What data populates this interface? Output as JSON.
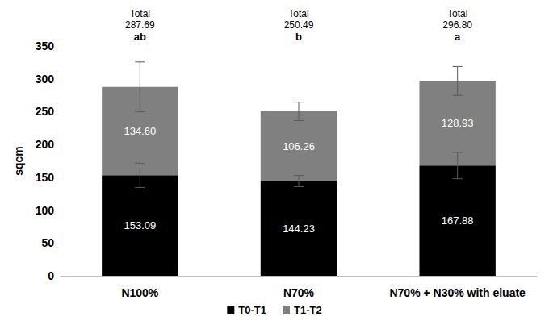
{
  "chart_data": {
    "type": "bar",
    "stacked": true,
    "y_label": "sqcm",
    "categories": [
      "N100%",
      "N70%",
      "N70% + N30% with eluate"
    ],
    "series": [
      {
        "name": "T0-T1",
        "color": "#000000",
        "values": [
          153.09,
          144.23,
          167.88
        ],
        "value_labels": [
          "153.09",
          "144.23",
          "167.88"
        ],
        "errors": [
          18.5,
          8.5,
          20
        ]
      },
      {
        "name": "T1-T2",
        "color": "#808080",
        "values": [
          134.6,
          106.26,
          128.93
        ],
        "value_labels": [
          "134.60",
          "106.26",
          "128.93"
        ],
        "errors": [
          38,
          14,
          22
        ]
      }
    ],
    "total_title": "Total",
    "totals": [
      287.69,
      250.49,
      296.8
    ],
    "total_labels": [
      "287.69",
      "250.49",
      "296.80"
    ],
    "letters": [
      "ab",
      "b",
      "a"
    ],
    "ylim": [
      0,
      350
    ],
    "yticks": [
      0,
      50,
      100,
      150,
      200,
      250,
      300,
      350
    ],
    "grid": false,
    "legend": "bottom",
    "data_labels": true
  }
}
